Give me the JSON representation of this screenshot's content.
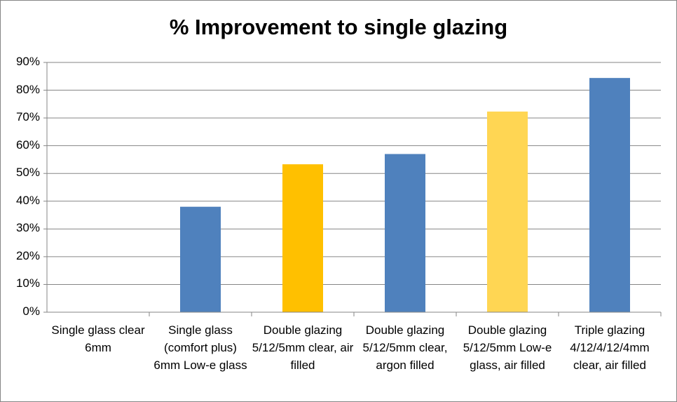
{
  "chart_data": {
    "type": "bar",
    "title": "% Improvement to single glazing",
    "categories": [
      "Single glass clear 6mm",
      "Single glass (comfort plus) 6mm Low-e glass",
      "Double glazing 5/12/5mm clear, air filled",
      "Double glazing 5/12/5mm clear, argon filled",
      "Double glazing 5/12/5mm Low-e glass, air filled",
      "Triple glazing 4/12/4/12/4mm clear, air filled"
    ],
    "values": [
      0,
      38,
      53.3,
      57,
      72.3,
      84.4
    ],
    "colors": [
      "#4F81BD",
      "#4F81BD",
      "#FFC000",
      "#4F81BD",
      "#FFD653",
      "#4F81BD"
    ],
    "ylim": [
      0,
      90
    ],
    "yticks": [
      "0%",
      "10%",
      "20%",
      "30%",
      "40%",
      "50%",
      "60%",
      "70%",
      "80%",
      "90%"
    ],
    "xlabel": "",
    "ylabel": "",
    "grid": true,
    "legend": "none"
  }
}
